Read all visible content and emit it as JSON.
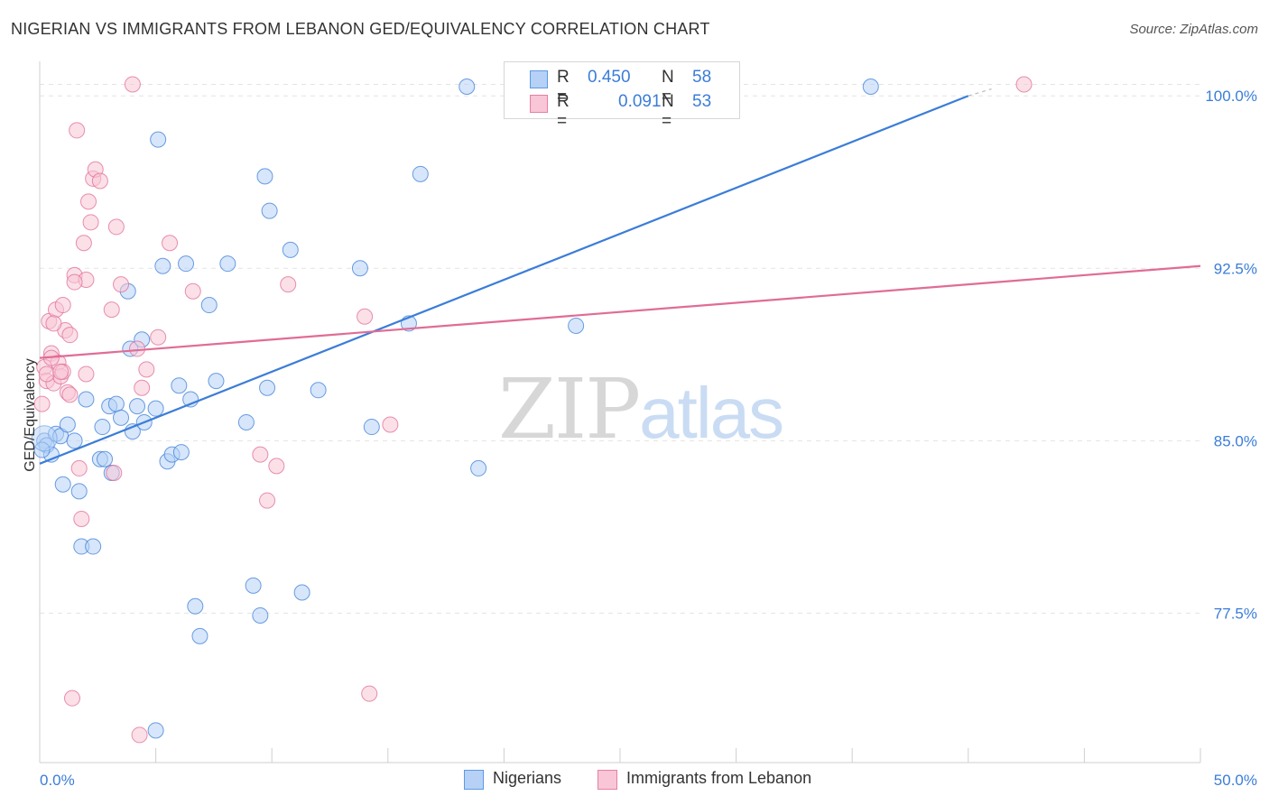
{
  "title": "NIGERIAN VS IMMIGRANTS FROM LEBANON GED/EQUIVALENCY CORRELATION CHART",
  "source": "Source: ZipAtlas.com",
  "watermark": {
    "zip": "ZIP",
    "atlas": "atlas"
  },
  "legend_top": {
    "r_label": "R =",
    "n_label": "N =",
    "rows": [
      {
        "r": "0.450",
        "n": "58",
        "color": "#5a9ae6",
        "fill": "#b6d1f5"
      },
      {
        "r": "0.091",
        "n": "53",
        "color": "#e77fa2",
        "fill": "#f8c6d6"
      }
    ]
  },
  "legend_bottom": [
    {
      "label": "Nigerians",
      "color": "#5a9ae6",
      "fill": "#b6d1f5"
    },
    {
      "label": "Immigrants from Lebanon",
      "color": "#e77fa2",
      "fill": "#f8c6d6"
    }
  ],
  "chart_data": {
    "type": "scatter",
    "title": "NIGERIAN VS IMMIGRANTS FROM LEBANON GED/EQUIVALENCY CORRELATION CHART",
    "xlabel": "",
    "ylabel": "GED/Equivalency",
    "xlim": [
      0,
      50
    ],
    "ylim": [
      71.0,
      101.5
    ],
    "x_tick_labels": [
      "0.0%",
      "50.0%"
    ],
    "y_ticks": [
      77.5,
      85.0,
      92.5,
      100.0
    ],
    "y_tick_labels": [
      "77.5%",
      "85.0%",
      "92.5%",
      "100.0%"
    ],
    "grid": true,
    "series": [
      {
        "name": "Nigerians",
        "color": "#3b7dd8",
        "fill": "#b6d1f5",
        "trend": {
          "x": [
            0,
            40
          ],
          "y": [
            84.0,
            100.0
          ],
          "dashed_to": [
            41,
            100.3
          ]
        },
        "points": [
          [
            0.2,
            85.0
          ],
          [
            0.3,
            84.8
          ],
          [
            0.5,
            84.4
          ],
          [
            0.7,
            85.3
          ],
          [
            0.9,
            85.2
          ],
          [
            1.0,
            83.1
          ],
          [
            1.2,
            85.7
          ],
          [
            1.5,
            85.0
          ],
          [
            1.7,
            82.8
          ],
          [
            1.8,
            80.4
          ],
          [
            2.0,
            86.8
          ],
          [
            2.3,
            80.4
          ],
          [
            2.6,
            84.2
          ],
          [
            2.7,
            85.6
          ],
          [
            2.8,
            84.2
          ],
          [
            3.0,
            86.5
          ],
          [
            3.1,
            83.6
          ],
          [
            3.3,
            86.6
          ],
          [
            3.5,
            86.0
          ],
          [
            3.8,
            91.5
          ],
          [
            3.9,
            89.0
          ],
          [
            4.0,
            85.4
          ],
          [
            4.2,
            86.5
          ],
          [
            4.4,
            89.4
          ],
          [
            4.5,
            85.8
          ],
          [
            5.0,
            86.4
          ],
          [
            5.1,
            98.1
          ],
          [
            5.3,
            92.6
          ],
          [
            5.5,
            84.1
          ],
          [
            5.7,
            84.4
          ],
          [
            6.0,
            87.4
          ],
          [
            6.1,
            84.5
          ],
          [
            6.3,
            92.7
          ],
          [
            6.5,
            86.8
          ],
          [
            6.7,
            77.8
          ],
          [
            6.9,
            76.5
          ],
          [
            7.3,
            90.9
          ],
          [
            7.6,
            87.6
          ],
          [
            8.1,
            92.7
          ],
          [
            8.9,
            85.8
          ],
          [
            9.2,
            78.7
          ],
          [
            9.5,
            77.4
          ],
          [
            9.7,
            96.5
          ],
          [
            9.8,
            87.3
          ],
          [
            9.9,
            95.0
          ],
          [
            10.8,
            93.3
          ],
          [
            11.3,
            78.4
          ],
          [
            12.0,
            87.2
          ],
          [
            13.8,
            92.5
          ],
          [
            14.3,
            85.6
          ],
          [
            15.9,
            90.1
          ],
          [
            16.4,
            96.6
          ],
          [
            18.4,
            100.4
          ],
          [
            18.9,
            83.8
          ],
          [
            23.1,
            90.0
          ],
          [
            35.8,
            100.4
          ],
          [
            5.0,
            72.4
          ],
          [
            0.1,
            84.6
          ]
        ]
      },
      {
        "name": "Immigrants from Lebanon",
        "color": "#e06c96",
        "fill": "#f8c6d6",
        "trend": {
          "x": [
            0,
            50
          ],
          "y": [
            88.6,
            92.6
          ]
        },
        "points": [
          [
            0.1,
            86.6
          ],
          [
            0.2,
            88.2
          ],
          [
            0.3,
            87.6
          ],
          [
            0.4,
            90.2
          ],
          [
            0.5,
            88.8
          ],
          [
            0.6,
            87.5
          ],
          [
            0.7,
            90.7
          ],
          [
            0.8,
            88.4
          ],
          [
            0.9,
            87.8
          ],
          [
            1.0,
            88.0
          ],
          [
            1.1,
            89.8
          ],
          [
            1.2,
            87.1
          ],
          [
            1.3,
            87.0
          ],
          [
            1.3,
            89.6
          ],
          [
            1.5,
            92.2
          ],
          [
            1.6,
            98.5
          ],
          [
            1.7,
            83.8
          ],
          [
            1.8,
            81.6
          ],
          [
            1.9,
            93.6
          ],
          [
            2.0,
            92.0
          ],
          [
            2.0,
            87.9
          ],
          [
            2.1,
            95.4
          ],
          [
            2.2,
            94.5
          ],
          [
            2.3,
            96.4
          ],
          [
            2.4,
            96.8
          ],
          [
            2.6,
            96.3
          ],
          [
            3.1,
            90.7
          ],
          [
            3.2,
            83.6
          ],
          [
            3.3,
            94.3
          ],
          [
            3.5,
            91.8
          ],
          [
            4.0,
            100.5
          ],
          [
            4.2,
            89.0
          ],
          [
            4.3,
            72.2
          ],
          [
            4.4,
            87.3
          ],
          [
            4.6,
            88.1
          ],
          [
            5.1,
            89.5
          ],
          [
            5.6,
            93.6
          ],
          [
            6.6,
            91.5
          ],
          [
            9.5,
            84.4
          ],
          [
            9.8,
            82.4
          ],
          [
            10.2,
            83.9
          ],
          [
            10.7,
            91.8
          ],
          [
            14.0,
            90.4
          ],
          [
            14.2,
            74.0
          ],
          [
            15.1,
            85.7
          ],
          [
            42.4,
            100.5
          ],
          [
            1.4,
            73.8
          ],
          [
            0.3,
            87.9
          ],
          [
            0.5,
            88.6
          ],
          [
            0.9,
            88.0
          ],
          [
            1.5,
            91.9
          ],
          [
            0.6,
            90.1
          ],
          [
            1.0,
            90.9
          ]
        ]
      }
    ]
  }
}
